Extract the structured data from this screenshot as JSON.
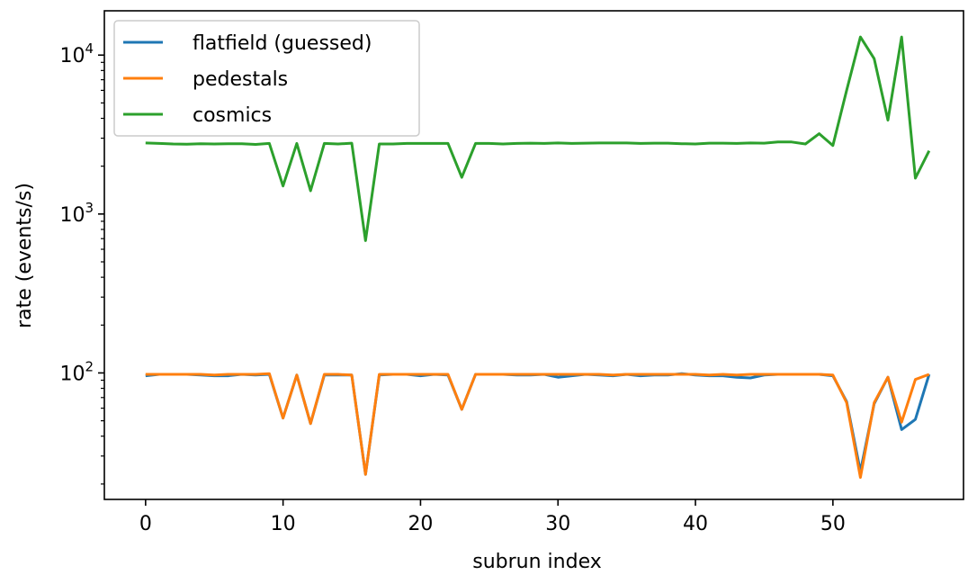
{
  "chart_data": {
    "type": "line",
    "title": "",
    "xlabel": "subrun index",
    "ylabel": "rate (events/s)",
    "xlim": [
      -3,
      59.5
    ],
    "ylim": [
      16,
      19000
    ],
    "yscale": "log",
    "grid": false,
    "legend_position": "top-left",
    "xticks": [
      0,
      10,
      20,
      30,
      40,
      50
    ],
    "yticks": [
      {
        "value": 100,
        "base": "10",
        "exp": "2"
      },
      {
        "value": 1000,
        "base": "10",
        "exp": "3"
      },
      {
        "value": 10000,
        "base": "10",
        "exp": "4"
      }
    ],
    "x": [
      0,
      1,
      2,
      3,
      4,
      5,
      6,
      7,
      8,
      9,
      10,
      11,
      12,
      13,
      14,
      15,
      16,
      17,
      18,
      19,
      20,
      21,
      22,
      23,
      24,
      25,
      26,
      27,
      28,
      29,
      30,
      31,
      32,
      33,
      34,
      35,
      36,
      37,
      38,
      39,
      40,
      41,
      42,
      43,
      44,
      45,
      46,
      47,
      48,
      49,
      50,
      51,
      52,
      53,
      54,
      55,
      56,
      57
    ],
    "series": [
      {
        "name": "flatfield (guessed)",
        "color": "#1f77b4",
        "values": [
          96,
          98,
          98,
          98,
          97,
          96,
          96,
          98,
          97,
          98,
          52,
          97,
          48,
          97,
          97,
          97,
          23,
          97,
          98,
          98,
          96,
          98,
          97,
          59,
          98,
          98,
          98,
          97,
          97,
          98,
          94,
          96,
          98,
          97,
          96,
          98,
          96,
          97,
          97,
          99,
          97,
          96,
          96,
          94,
          93,
          97,
          98,
          98,
          98,
          98,
          96,
          66,
          24,
          64,
          94,
          44,
          51,
          98
        ]
      },
      {
        "name": "pedestals",
        "color": "#ff7f0e",
        "values": [
          98,
          98,
          98,
          98,
          98,
          97,
          98,
          98,
          98,
          99,
          52,
          97,
          48,
          98,
          98,
          97,
          23,
          98,
          98,
          98,
          98,
          98,
          98,
          59,
          98,
          98,
          98,
          98,
          98,
          98,
          98,
          98,
          98,
          98,
          97,
          98,
          98,
          98,
          98,
          98,
          98,
          97,
          98,
          97,
          98,
          98,
          98,
          98,
          98,
          98,
          97,
          65,
          22,
          65,
          94,
          49,
          91,
          98
        ]
      },
      {
        "name": "cosmics",
        "color": "#2ca02c",
        "values": [
          2800,
          2780,
          2760,
          2750,
          2770,
          2760,
          2770,
          2770,
          2740,
          2780,
          1500,
          2780,
          1400,
          2780,
          2760,
          2790,
          680,
          2760,
          2760,
          2780,
          2780,
          2780,
          2780,
          1700,
          2780,
          2780,
          2760,
          2780,
          2790,
          2780,
          2800,
          2780,
          2790,
          2800,
          2800,
          2800,
          2780,
          2790,
          2790,
          2770,
          2760,
          2790,
          2790,
          2780,
          2800,
          2790,
          2840,
          2840,
          2760,
          3200,
          2700,
          6000,
          13000,
          9500,
          3900,
          13000,
          1680,
          2500
        ]
      }
    ]
  }
}
